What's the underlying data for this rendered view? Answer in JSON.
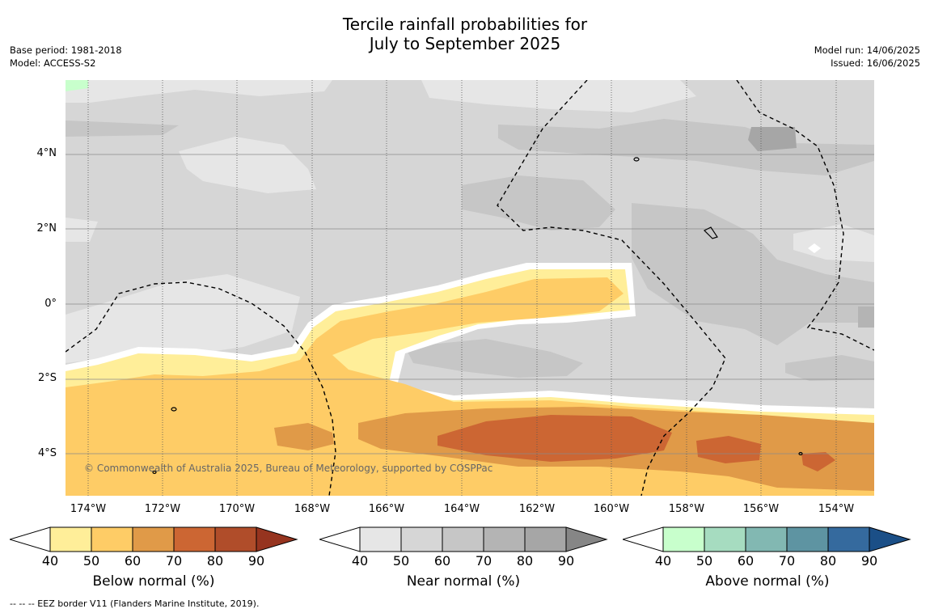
{
  "header": {
    "title_line1": "Tercile rainfall probabilities for",
    "title_line2": "July to September 2025",
    "base_period": "Base period: 1981-2018",
    "model": "Model: ACCESS-S2",
    "model_run": "Model run: 14/06/2025",
    "issued": "Issued: 16/06/2025"
  },
  "map": {
    "lon_range": [
      -174.6,
      -152.9
    ],
    "lat_range": [
      -5.1,
      5.95
    ],
    "lat_ticks": [
      {
        "value": 4,
        "label": "4°N"
      },
      {
        "value": 2,
        "label": "2°N"
      },
      {
        "value": 0,
        "label": "0°"
      },
      {
        "value": -2,
        "label": "2°S"
      },
      {
        "value": -4,
        "label": "4°S"
      }
    ],
    "lon_ticks": [
      {
        "value": -174,
        "label": "174°W"
      },
      {
        "value": -172,
        "label": "172°W"
      },
      {
        "value": -170,
        "label": "170°W"
      },
      {
        "value": -168,
        "label": "168°W"
      },
      {
        "value": -166,
        "label": "166°W"
      },
      {
        "value": -164,
        "label": "164°W"
      },
      {
        "value": -162,
        "label": "162°W"
      },
      {
        "value": -160,
        "label": "160°W"
      },
      {
        "value": -158,
        "label": "158°W"
      },
      {
        "value": -156,
        "label": "156°W"
      },
      {
        "value": -154,
        "label": "154°W"
      }
    ],
    "copyright": "© Commonwealth of Australia 2025, Bureau of Meteorology, supported by COSPPac",
    "colors": {
      "near_40": "#e6e6e6",
      "near_50": "#d6d6d6",
      "near_60": "#c6c6c6",
      "near_70": "#b4b4b4",
      "near_80": "#a6a6a6",
      "below_40": "#ffee99",
      "below_50": "#fecc66",
      "below_60": "#e09a48",
      "below_70": "#cc6633",
      "above_40": "#c8ffcc"
    }
  },
  "legends": [
    {
      "title": "Below normal (%)",
      "ticks": [
        "40",
        "50",
        "60",
        "70",
        "80",
        "90"
      ],
      "colors": [
        "#ffee99",
        "#fecc66",
        "#e09a48",
        "#cc6633",
        "#b04d2a",
        "#96341f"
      ]
    },
    {
      "title": "Near normal (%)",
      "ticks": [
        "40",
        "50",
        "60",
        "70",
        "80",
        "90"
      ],
      "colors": [
        "#e6e6e6",
        "#d6d6d6",
        "#c6c6c6",
        "#b4b4b4",
        "#a6a6a6",
        "#868686"
      ]
    },
    {
      "title": "Above normal (%)",
      "ticks": [
        "40",
        "50",
        "60",
        "70",
        "80",
        "90"
      ],
      "colors": [
        "#c8ffcc",
        "#a6dcc0",
        "#82b8b2",
        "#5e94a2",
        "#356a9e",
        "#1b4f87"
      ]
    }
  ],
  "footnote": "--  --  -- EEZ border V11 (Flanders Marine Institute, 2019)."
}
